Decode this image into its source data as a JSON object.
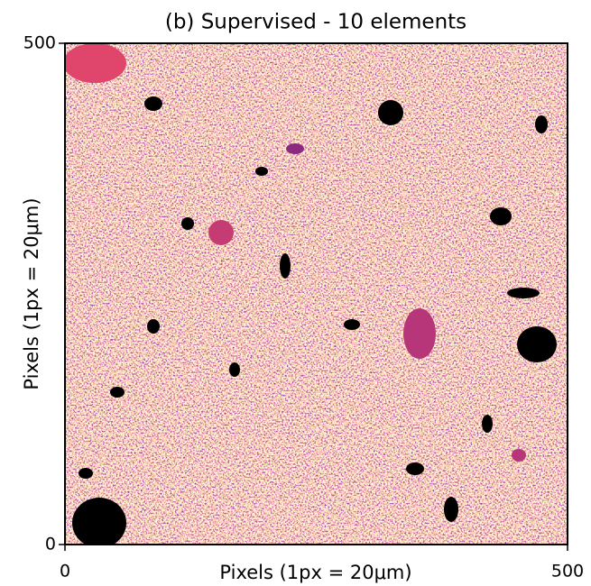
{
  "chart_data": {
    "type": "image",
    "title": "(b) Supervised - 10 elements",
    "xlabel": "Pixels (1px = 20μm)",
    "ylabel": "Pixels (1px = 20μm)",
    "xlim": [
      0,
      500
    ],
    "ylim": [
      0,
      500
    ],
    "xticks": [
      0,
      500
    ],
    "yticks": [
      0,
      500
    ]
  }
}
